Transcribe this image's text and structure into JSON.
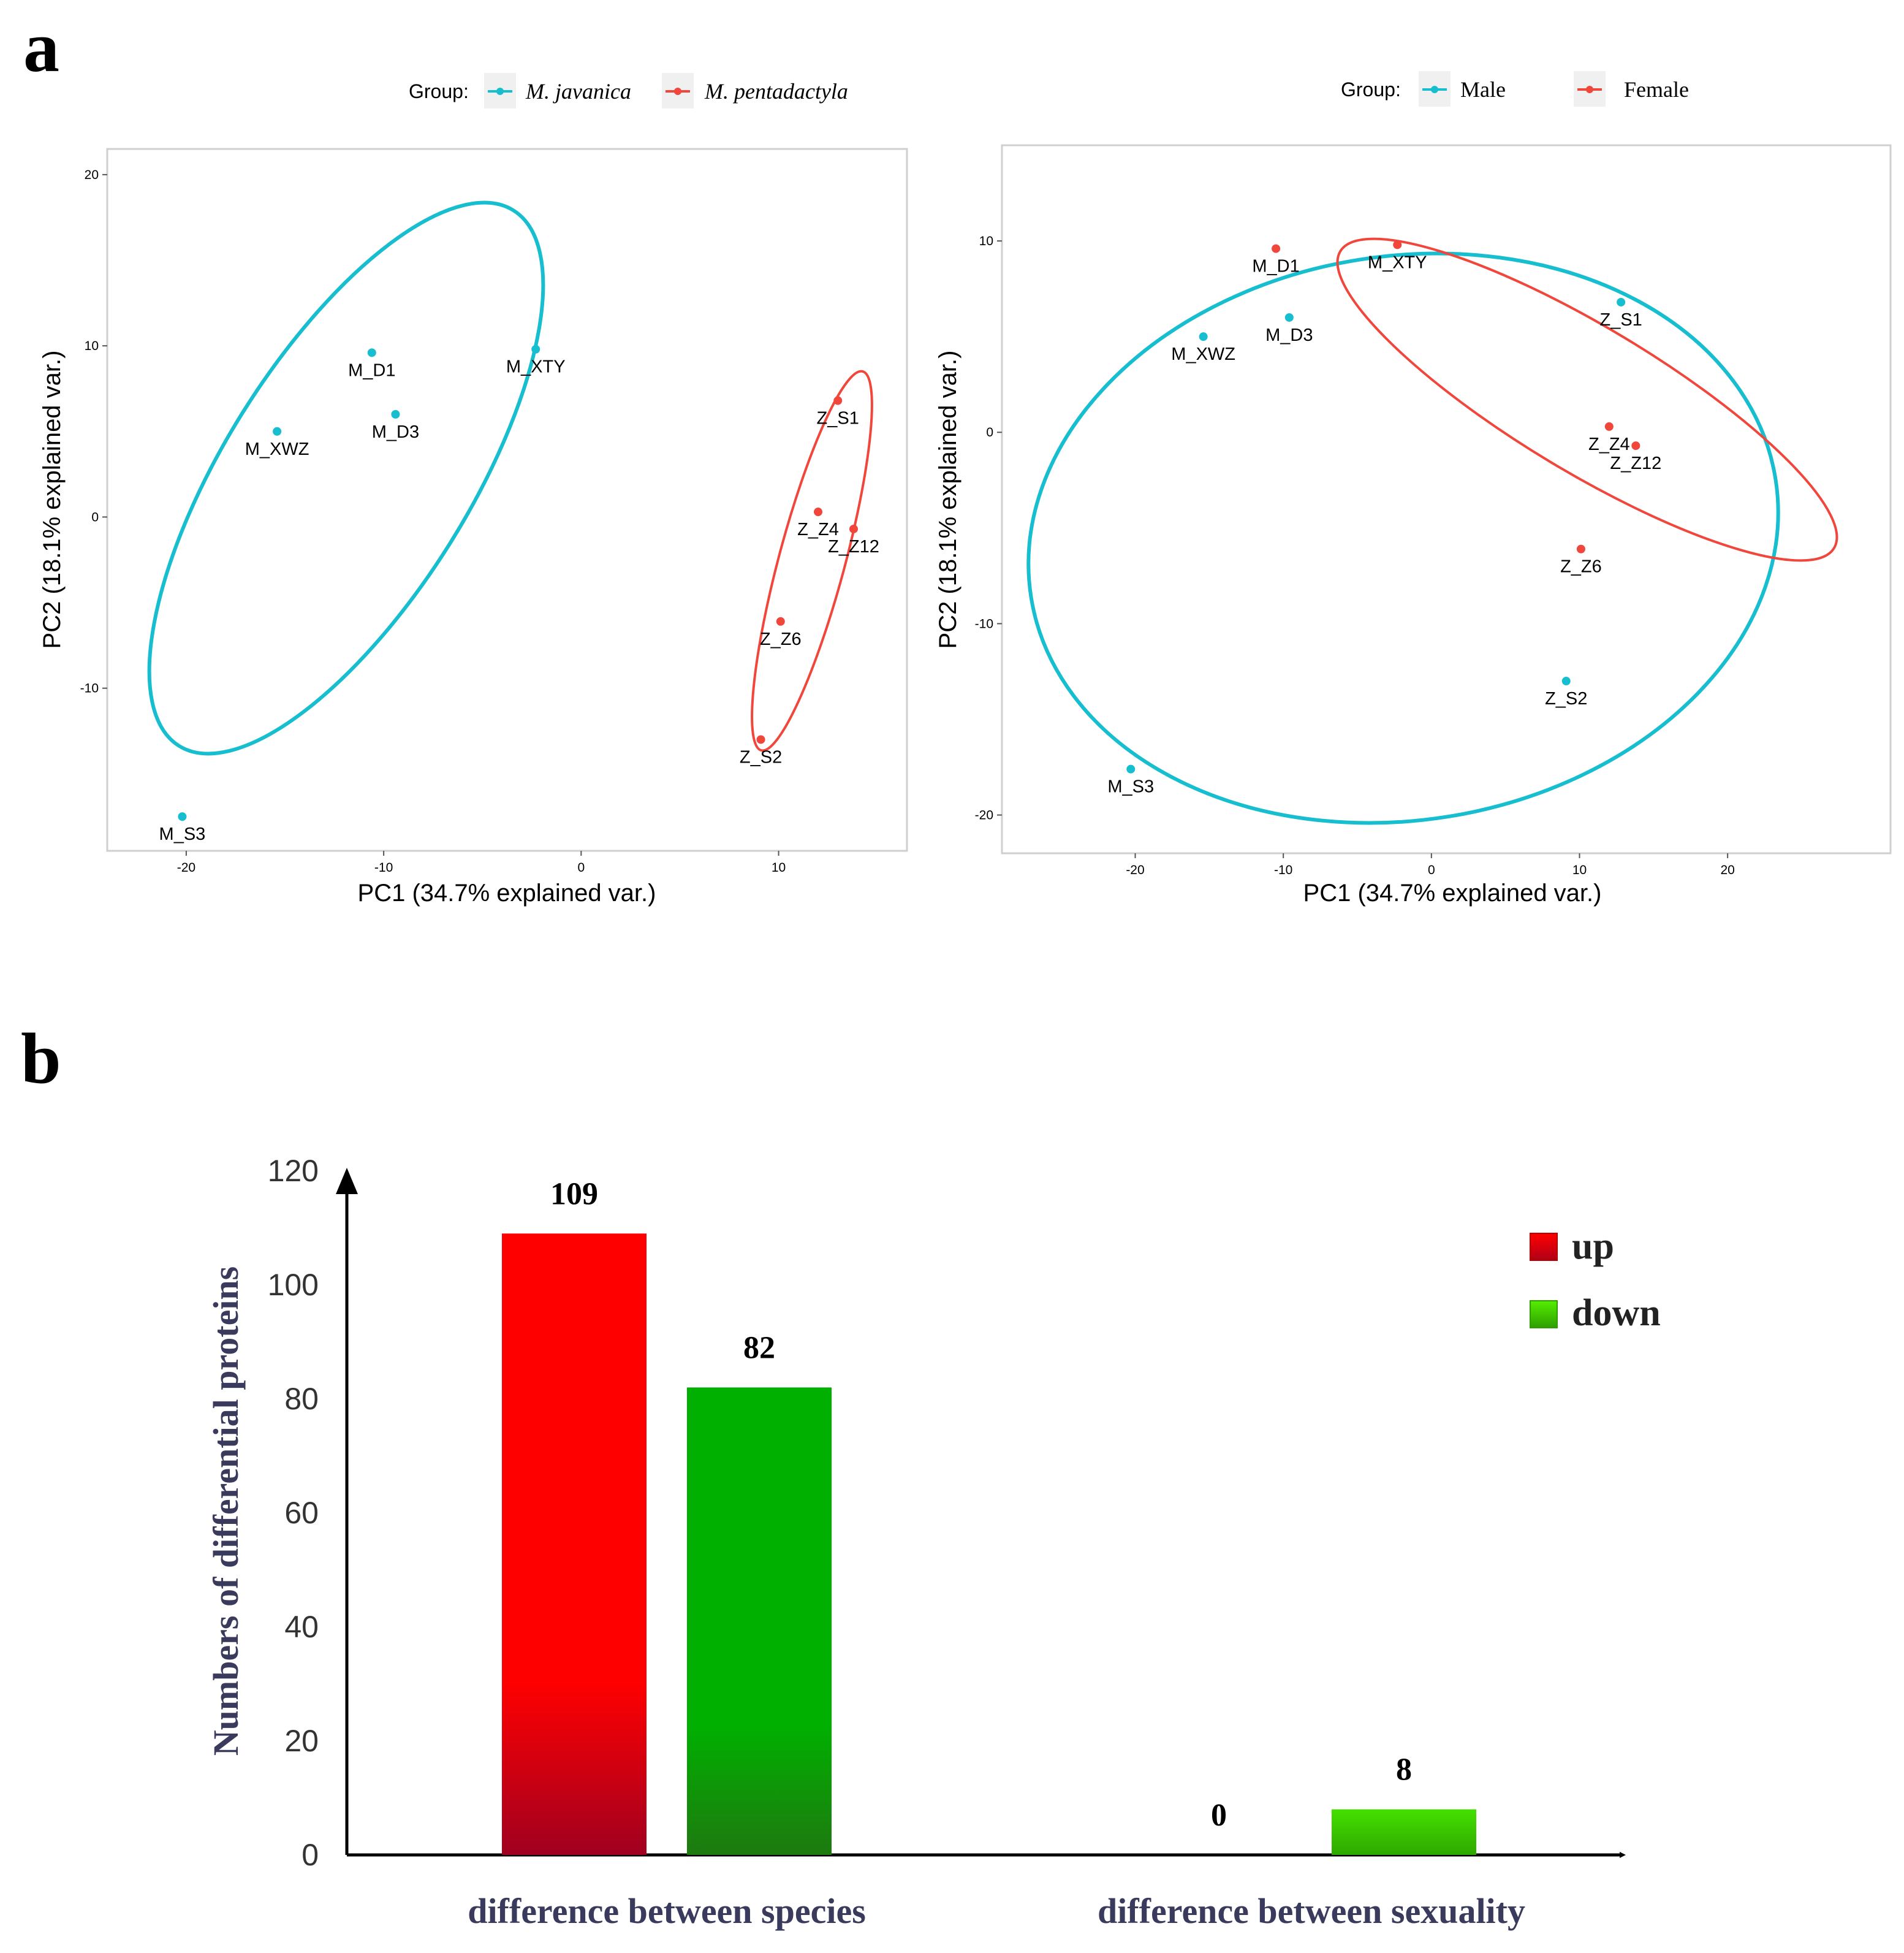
{
  "panels": {
    "a": "a",
    "b": "b"
  },
  "colors": {
    "cyan": "#17BECF",
    "red": "#F0463C",
    "bar_red": "#FF0000",
    "bar_red_dark": "#A00020",
    "bar_green": "#00B000",
    "bar_green_dark": "#1E7A10",
    "bar_lime": "#44E000"
  },
  "chart_data": [
    {
      "type": "scatter",
      "xlabel": "PC1 (34.7% explained var.)",
      "ylabel": "PC2 (18.1% explained var.)",
      "xlim": [
        -24,
        16.5
      ],
      "ylim": [
        -19.5,
        21.5
      ],
      "xticks": [
        -20,
        -10,
        0,
        10
      ],
      "yticks": [
        -10,
        0,
        10,
        20
      ],
      "legend_title": "Group:",
      "legend_position": "top",
      "ellipses": true,
      "series": [
        {
          "name": "M. javanica",
          "color": "#17BECF",
          "points": [
            {
              "label": "M_D1",
              "x": -10.6,
              "y": 9.6
            },
            {
              "label": "M_XTY",
              "x": -2.3,
              "y": 9.8
            },
            {
              "label": "M_XWZ",
              "x": -15.4,
              "y": 5.0
            },
            {
              "label": "M_D3",
              "x": -9.4,
              "y": 6.0
            },
            {
              "label": "M_S3",
              "x": -20.2,
              "y": -17.5
            }
          ]
        },
        {
          "name": "M. pentadactyla",
          "color": "#F0463C",
          "points": [
            {
              "label": "Z_S1",
              "x": 13.0,
              "y": 6.8
            },
            {
              "label": "Z_Z4",
              "x": 12.0,
              "y": 0.3
            },
            {
              "label": "Z_Z12",
              "x": 13.8,
              "y": -0.7
            },
            {
              "label": "Z_Z6",
              "x": 10.1,
              "y": -6.1
            },
            {
              "label": "Z_S2",
              "x": 9.1,
              "y": -13.0
            }
          ]
        }
      ]
    },
    {
      "type": "scatter",
      "xlabel": "PC1 (34.7% explained var.)",
      "ylabel": "PC2 (18.1% explained var.)",
      "xlim": [
        -29,
        31
      ],
      "ylim": [
        -22,
        15
      ],
      "xticks": [
        -20,
        -10,
        0,
        10,
        20
      ],
      "yticks": [
        -20,
        -10,
        0,
        10
      ],
      "legend_title": "Group:",
      "legend_position": "top",
      "ellipses": true,
      "series": [
        {
          "name": "Male",
          "color": "#17BECF",
          "points": [
            {
              "label": "M_XWZ",
              "x": -15.4,
              "y": 5.0
            },
            {
              "label": "M_D3",
              "x": -9.6,
              "y": 6.0
            },
            {
              "label": "Z_S1",
              "x": 12.8,
              "y": 6.8
            },
            {
              "label": "Z_S2",
              "x": 9.1,
              "y": -13.0
            },
            {
              "label": "M_S3",
              "x": -20.3,
              "y": -17.6
            }
          ]
        },
        {
          "name": "Female",
          "color": "#F0463C",
          "points": [
            {
              "label": "M_D1",
              "x": -10.5,
              "y": 9.6
            },
            {
              "label": "M_XTY",
              "x": -2.3,
              "y": 9.8
            },
            {
              "label": "Z_Z4",
              "x": 12.0,
              "y": 0.3
            },
            {
              "label": "Z_Z12",
              "x": 13.8,
              "y": -0.7
            },
            {
              "label": "Z_Z6",
              "x": 10.1,
              "y": -6.1
            }
          ]
        }
      ]
    },
    {
      "type": "bar",
      "ylabel": "Numbers of differential proteins",
      "ylim": [
        0,
        120
      ],
      "yticks": [
        0,
        20,
        40,
        60,
        80,
        100,
        120
      ],
      "categories": [
        "difference between species",
        "difference between sexuality"
      ],
      "series": [
        {
          "name": "up",
          "values": [
            109,
            0
          ]
        },
        {
          "name": "down",
          "values": [
            82,
            8
          ]
        }
      ],
      "legend_position": "top-right"
    }
  ]
}
